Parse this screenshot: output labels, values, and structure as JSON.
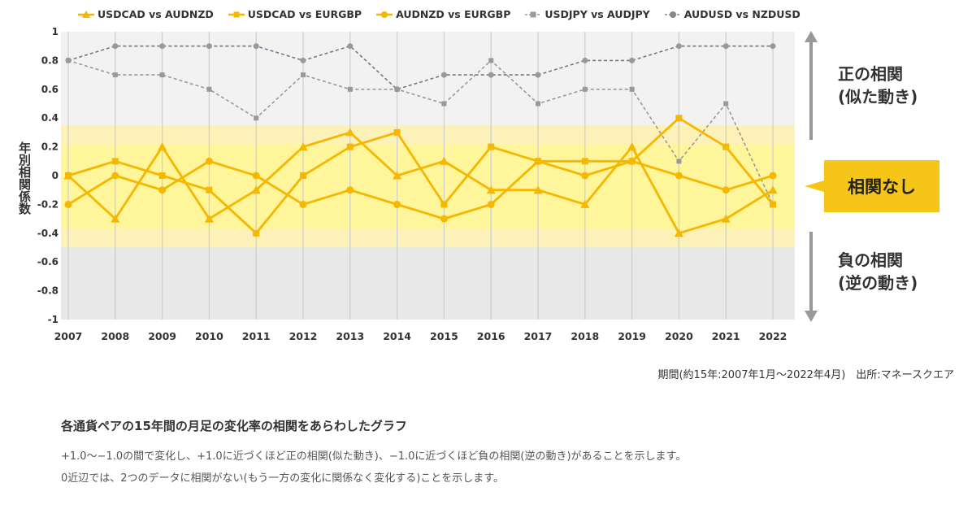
{
  "legend": [
    {
      "label": "USDCAD vs AUDNZD",
      "color": "#F5B700",
      "marker": "triangle",
      "dash": false
    },
    {
      "label": "USDCAD vs EURGBP",
      "color": "#F5B700",
      "marker": "square",
      "dash": false
    },
    {
      "label": "AUDNZD vs EURGBP",
      "color": "#F5B700",
      "marker": "circle",
      "dash": false
    },
    {
      "label": "USDJPY vs AUDJPY",
      "color": "#999999",
      "marker": "square",
      "dash": true
    },
    {
      "label": "AUDUSD vs NZDUSD",
      "color": "#888888",
      "marker": "circle",
      "dash": true
    }
  ],
  "ylabel": "年別相関係数",
  "zones": {
    "positive": "正の相関\n(似た動き)",
    "none": "相関なし",
    "negative": "負の相関\n(逆の動き)"
  },
  "source": "期間(約15年:2007年1月〜2022年4月)　出所:マネースクエア",
  "description": {
    "title": "各通貨ペアの15年間の月足の変化率の相関をあらわしたグラフ",
    "line1": "+1.0〜−1.0の間で変化し、+1.0に近づくほど正の相関(似た動き)、−1.0に近づくほど負の相関(逆の動き)があることを示します。",
    "line2": "0近辺では、2つのデータに相関がない(もう一方の変化に関係なく変化する)ことを示します。"
  },
  "chart_data": {
    "type": "line",
    "x": [
      "2007",
      "2008",
      "2009",
      "2010",
      "2011",
      "2012",
      "2013",
      "2014",
      "2015",
      "2016",
      "2017",
      "2018",
      "2019",
      "2020",
      "2021",
      "2022"
    ],
    "ylim": [
      -1,
      1
    ],
    "yticks": [
      "1",
      "0.8",
      "0.6",
      "0.4",
      "0.2",
      "0",
      "-0.2",
      "-0.4",
      "-0.6",
      "-0.8",
      "-1"
    ],
    "grid": true,
    "legend_position": "top",
    "series": [
      {
        "name": "USDCAD vs AUDNZD",
        "values": [
          0,
          -0.3,
          0.2,
          -0.3,
          -0.1,
          0.2,
          0.3,
          0,
          0.1,
          -0.1,
          -0.1,
          -0.2,
          0.2,
          -0.4,
          -0.3,
          -0.1
        ]
      },
      {
        "name": "USDCAD vs EURGBP",
        "values": [
          0,
          0.1,
          0,
          -0.1,
          -0.4,
          0,
          0.2,
          0.3,
          -0.2,
          0.2,
          0.1,
          0.1,
          0.1,
          0.4,
          0.2,
          -0.2
        ]
      },
      {
        "name": "AUDNZD vs EURGBP",
        "values": [
          -0.2,
          0,
          -0.1,
          0.1,
          0,
          -0.2,
          -0.1,
          -0.2,
          -0.3,
          -0.2,
          0.1,
          0,
          0.1,
          0,
          -0.1,
          0
        ]
      },
      {
        "name": "USDJPY vs AUDJPY",
        "values": [
          0.8,
          0.7,
          0.7,
          0.6,
          0.4,
          0.7,
          0.6,
          0.6,
          0.5,
          0.8,
          0.5,
          0.6,
          0.6,
          0.1,
          0.5,
          -0.2
        ]
      },
      {
        "name": "AUDUSD vs NZDUSD",
        "values": [
          0.8,
          0.9,
          0.9,
          0.9,
          0.9,
          0.8,
          0.9,
          0.6,
          0.7,
          0.7,
          0.7,
          0.8,
          0.8,
          0.9,
          0.9,
          0.9
        ]
      }
    ]
  }
}
